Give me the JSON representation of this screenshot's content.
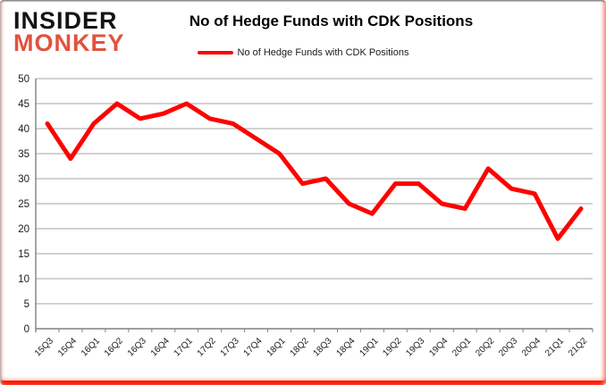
{
  "logo": {
    "line1": "INSIDER",
    "line2": "MONKEY",
    "color1": "#141414",
    "color2": "#e2523d"
  },
  "header": {
    "title": "No of Hedge Funds with CDK Positions"
  },
  "legend": {
    "label": "No of Hedge Funds with CDK Positions",
    "line_color": "#ff0000"
  },
  "chart_data": {
    "type": "line",
    "title": "No of Hedge Funds with CDK Positions",
    "categories": [
      "15Q3",
      "15Q4",
      "16Q1",
      "16Q2",
      "16Q3",
      "16Q4",
      "17Q1",
      "17Q2",
      "17Q3",
      "17Q4",
      "18Q1",
      "18Q2",
      "18Q3",
      "18Q4",
      "19Q1",
      "19Q2",
      "19Q3",
      "19Q4",
      "20Q1",
      "20Q2",
      "20Q3",
      "20Q4",
      "21Q1",
      "21Q2"
    ],
    "series": [
      {
        "name": "No of Hedge Funds with CDK Positions",
        "color": "#ff0000",
        "values": [
          41,
          34,
          41,
          45,
          42,
          43,
          45,
          42,
          41,
          38,
          35,
          29,
          30,
          25,
          23,
          29,
          29,
          25,
          24,
          32,
          28,
          27,
          18,
          24
        ]
      }
    ],
    "ylim": [
      0,
      50
    ],
    "ytick_step": 5,
    "yticks": [
      0,
      5,
      10,
      15,
      20,
      25,
      30,
      35,
      40,
      45,
      50
    ],
    "grid": true,
    "legend_position": "top",
    "gridline_color": "#a6a6a6",
    "axis_color": "#808080",
    "label_color": "#1a1a1a"
  }
}
